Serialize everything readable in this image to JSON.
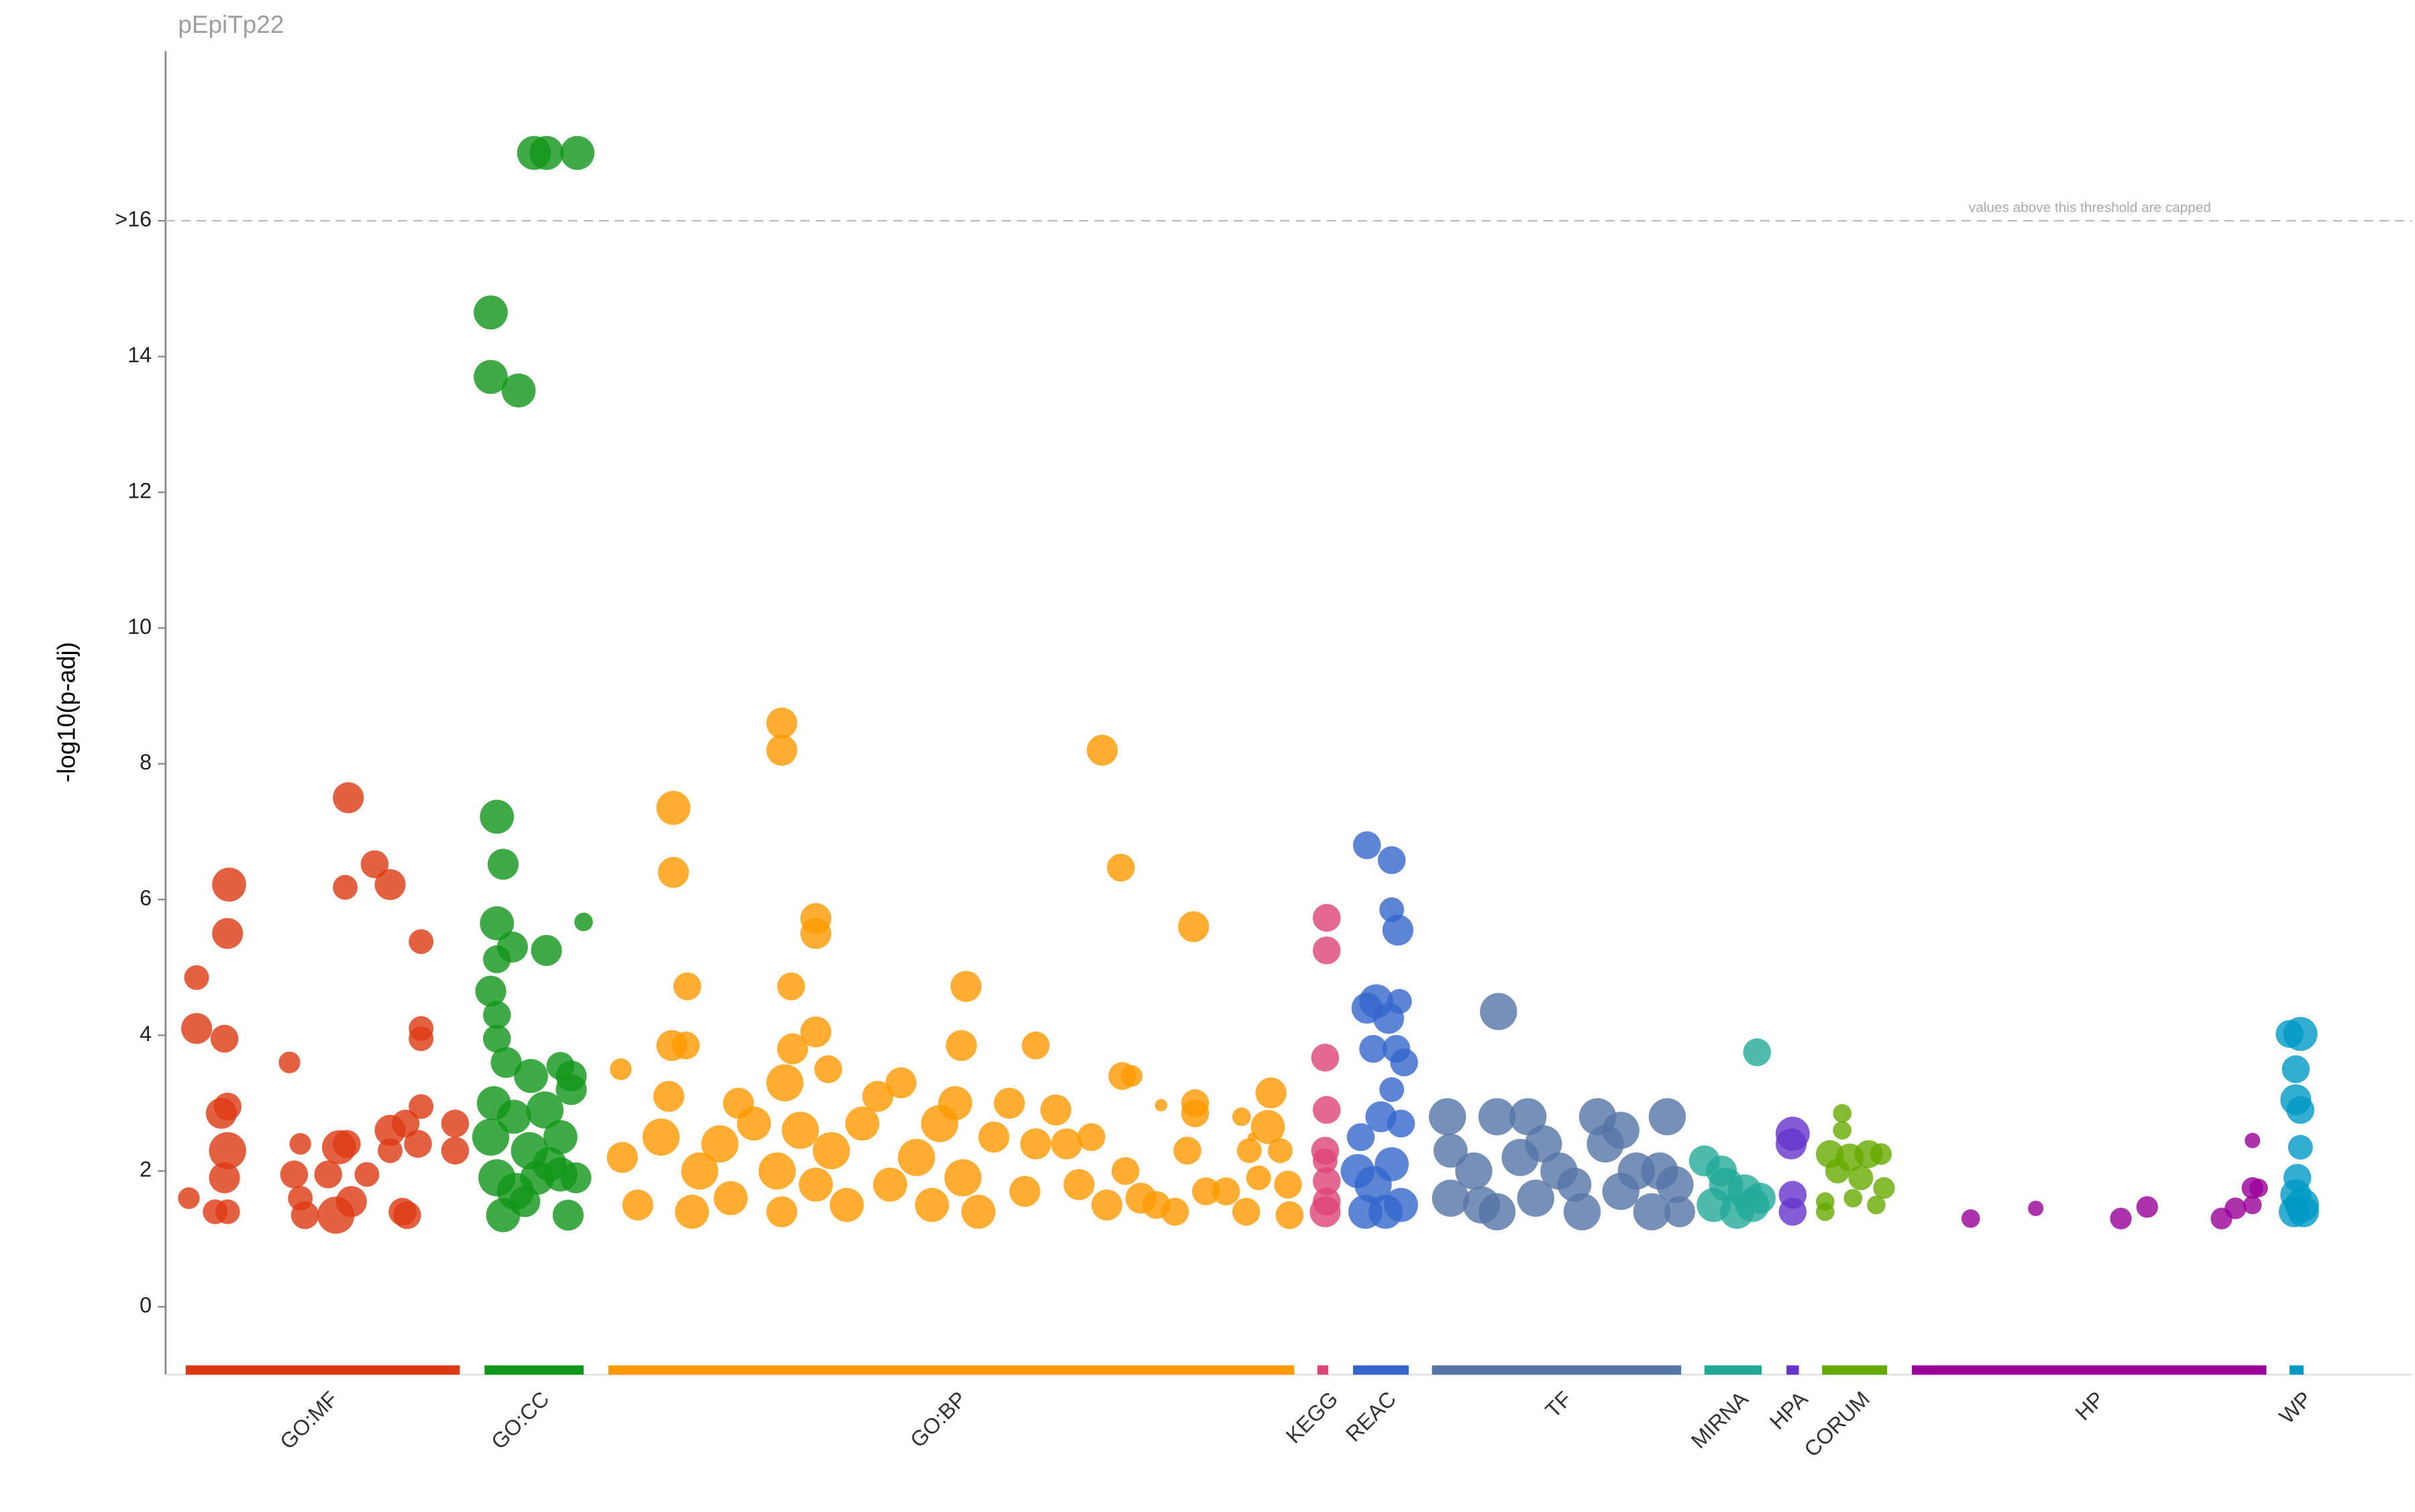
{
  "chart_data": {
    "type": "manhattan",
    "title": "pEpiTp22",
    "y_label": "-log10(p-adj)",
    "annotation": "values above this threshold are capped",
    "threshold": 16,
    "xlim": [
      0,
      1451
    ],
    "ylim": [
      -1,
      18.5
    ],
    "yticks": [
      0,
      2,
      4,
      6,
      8,
      10,
      12,
      14,
      {
        "value": 16,
        "label": ">16"
      }
    ],
    "series": [
      {
        "name": "GO:MF",
        "color": "#dc3912",
        "span": [
          13,
          190
        ],
        "x": [
          20,
          20,
          38,
          41,
          40,
          36,
          40,
          40,
          38,
          15,
          32,
          40,
          80,
          87,
          83,
          87,
          112,
          117,
          118,
          116,
          135,
          145,
          110,
          120,
          105,
          145,
          155,
          165,
          165,
          165,
          165,
          163,
          153,
          187,
          187,
          130,
          145,
          156,
          90
        ],
        "values": [
          4.85,
          4.1,
          3.95,
          6.22,
          5.5,
          2.85,
          2.95,
          2.3,
          1.9,
          1.6,
          1.4,
          1.4,
          3.6,
          2.4,
          1.95,
          1.6,
          2.35,
          2.4,
          7.5,
          6.18,
          6.52,
          6.22,
          1.35,
          1.55,
          1.95,
          2.6,
          2.7,
          5.38,
          4.1,
          3.95,
          2.95,
          2.4,
          1.4,
          2.7,
          2.3,
          1.95,
          2.3,
          1.35,
          1.35
        ],
        "sizes": [
          8,
          10,
          9,
          11,
          10,
          10,
          9,
          12,
          10,
          7,
          8,
          8,
          7,
          7,
          9,
          8,
          11,
          9,
          10,
          8,
          9,
          10,
          12,
          10,
          9,
          10,
          9,
          8,
          8,
          8,
          8,
          9,
          9,
          9,
          9,
          8,
          8,
          9,
          9
        ]
      },
      {
        "name": "GO:CC",
        "color": "#109618",
        "span": [
          206,
          270
        ],
        "x": [
          210,
          210,
          228,
          238,
          246,
          266,
          214,
          218,
          214,
          224,
          246,
          270,
          210,
          214,
          214,
          214,
          220,
          236,
          255,
          262,
          212,
          225,
          245,
          262,
          210,
          235,
          255,
          214,
          226,
          240,
          255,
          265,
          218,
          232,
          260,
          248
        ],
        "values": [
          14.65,
          13.7,
          13.5,
          17,
          17,
          17,
          7.22,
          6.52,
          5.65,
          5.3,
          5.25,
          5.67,
          4.65,
          5.12,
          4.3,
          3.95,
          3.6,
          3.4,
          3.55,
          3.4,
          3.0,
          2.8,
          2.9,
          3.2,
          2.5,
          2.3,
          2.5,
          1.9,
          1.7,
          1.9,
          1.95,
          1.9,
          1.35,
          1.55,
          1.35,
          2.1
        ],
        "sizes": [
          11,
          11,
          11,
          11,
          11,
          11,
          11,
          10,
          11,
          10,
          10,
          6,
          10,
          9,
          9,
          9,
          10,
          11,
          9,
          10,
          11,
          11,
          12,
          10,
          12,
          12,
          11,
          12,
          12,
          11,
          11,
          10,
          11,
          10,
          10,
          11
        ]
      },
      {
        "name": "GO:BP",
        "color": "#ff9900",
        "span": [
          286,
          729
        ],
        "x": [
          294,
          328,
          328,
          337,
          327,
          336,
          398,
          398,
          420,
          420,
          404,
          420,
          405,
          400,
          428,
          517,
          514,
          562,
          605,
          617,
          664,
          618,
          624,
          643,
          665,
          665,
          714,
          712,
          295,
          305,
          320,
          325,
          340,
          345,
          358,
          365,
          370,
          380,
          395,
          398,
          410,
          420,
          430,
          440,
          450,
          460,
          468,
          475,
          485,
          495,
          500,
          510,
          515,
          525,
          535,
          545,
          555,
          562,
          575,
          582,
          590,
          598,
          608,
          620,
          630,
          640,
          652,
          660,
          672,
          685,
          698,
          700,
          706,
          720,
          725,
          726,
          695,
          702
        ],
        "values": [
          3.5,
          7.35,
          6.4,
          4.72,
          3.85,
          3.85,
          8.6,
          8.2,
          5.72,
          5.5,
          4.72,
          4.05,
          3.8,
          3.3,
          3.5,
          4.72,
          3.85,
          3.85,
          8.2,
          6.47,
          5.6,
          3.4,
          3.4,
          2.97,
          3.0,
          2.85,
          3.15,
          2.65,
          2.2,
          1.5,
          2.5,
          3.1,
          1.4,
          2.0,
          2.4,
          1.6,
          3.0,
          2.7,
          2.0,
          1.4,
          2.6,
          1.8,
          2.3,
          1.5,
          2.7,
          3.1,
          1.8,
          3.3,
          2.2,
          1.5,
          2.7,
          3.0,
          1.9,
          1.4,
          2.5,
          3.0,
          1.7,
          2.4,
          2.9,
          2.4,
          1.8,
          2.5,
          1.5,
          2.0,
          1.6,
          1.5,
          1.4,
          2.3,
          1.7,
          1.7,
          1.4,
          2.3,
          1.9,
          2.3,
          1.8,
          1.35,
          2.8,
          2.5
        ],
        "sizes": [
          7,
          11,
          10,
          9,
          10,
          9,
          10,
          10,
          10,
          10,
          9,
          10,
          10,
          12,
          9,
          10,
          10,
          9,
          10,
          9,
          10,
          9,
          7,
          4,
          9,
          9,
          10,
          11,
          10,
          10,
          12,
          10,
          11,
          12,
          12,
          11,
          10,
          11,
          12,
          10,
          12,
          11,
          12,
          11,
          11,
          10,
          11,
          10,
          12,
          11,
          12,
          11,
          12,
          11,
          10,
          10,
          10,
          10,
          10,
          10,
          10,
          9,
          10,
          9,
          10,
          9,
          9,
          9,
          9,
          9,
          9,
          8,
          8,
          8,
          9,
          9,
          6,
          3
        ]
      },
      {
        "name": "KEGG",
        "color": "#dd4477",
        "span": [
          744,
          751
        ],
        "x": [
          750,
          750,
          749,
          750,
          749,
          749,
          750,
          750,
          749
        ],
        "values": [
          5.73,
          5.25,
          3.67,
          2.9,
          2.3,
          2.15,
          1.85,
          1.55,
          1.4
        ],
        "sizes": [
          9,
          9,
          9,
          9,
          9,
          8,
          9,
          9,
          10
        ]
      },
      {
        "name": "REAC",
        "color": "#3366cc",
        "span": [
          767,
          803
        ],
        "x": [
          776,
          792,
          792,
          796,
          776,
          782,
          797,
          790,
          780,
          795,
          800,
          792,
          772,
          785,
          798,
          770,
          780,
          792,
          798,
          775,
          788
        ],
        "values": [
          6.8,
          6.58,
          5.85,
          5.55,
          4.4,
          4.5,
          4.5,
          4.25,
          3.8,
          3.8,
          3.6,
          3.2,
          2.5,
          2.8,
          2.7,
          2.0,
          1.8,
          2.1,
          1.5,
          1.4,
          1.4
        ],
        "sizes": [
          9,
          9,
          8,
          10,
          10,
          11,
          8,
          10,
          9,
          9,
          9,
          8,
          9,
          10,
          9,
          11,
          12,
          11,
          11,
          11,
          11
        ]
      },
      {
        "name": "TF",
        "color": "#5574a6",
        "span": [
          818,
          979
        ],
        "x": [
          861,
          828,
          860,
          880,
          925,
          970,
          830,
          845,
          860,
          875,
          885,
          900,
          915,
          930,
          940,
          950,
          960,
          965,
          975,
          978,
          830,
          890,
          910,
          940,
          850
        ],
        "values": [
          4.35,
          2.8,
          2.8,
          2.8,
          2.8,
          2.8,
          1.6,
          2.0,
          1.4,
          2.2,
          1.6,
          2.0,
          1.4,
          2.4,
          1.7,
          2.0,
          1.4,
          2.0,
          1.8,
          1.4,
          2.3,
          2.4,
          1.8,
          2.6,
          1.5
        ],
        "sizes": [
          12,
          12,
          12,
          12,
          12,
          12,
          12,
          12,
          12,
          12,
          12,
          12,
          12,
          12,
          12,
          12,
          12,
          12,
          12,
          10,
          11,
          12,
          11,
          12,
          12
        ]
      },
      {
        "name": "MIRNA",
        "color": "#22aa99",
        "span": [
          994,
          1031
        ],
        "x": [
          994,
          1028,
          1000,
          1008,
          1015,
          1020,
          1025,
          1030,
          1005
        ],
        "values": [
          2.15,
          3.75,
          1.5,
          1.8,
          1.4,
          1.7,
          1.5,
          1.6,
          2.0
        ],
        "sizes": [
          10,
          9,
          11,
          11,
          11,
          11,
          11,
          10,
          10
        ]
      },
      {
        "name": "HPA",
        "color": "#6633cc",
        "span": [
          1047,
          1055
        ],
        "x": [
          1051,
          1050,
          1051,
          1051
        ],
        "values": [
          2.55,
          2.4,
          1.65,
          1.4
        ],
        "sizes": [
          11,
          10,
          9,
          9
        ]
      },
      {
        "name": "CORUM",
        "color": "#66aa00",
        "span": [
          1070,
          1112
        ],
        "x": [
          1083,
          1083,
          1075,
          1088,
          1100,
          1108,
          1080,
          1095,
          1110,
          1072,
          1090,
          1105,
          1072
        ],
        "values": [
          2.85,
          2.6,
          2.25,
          2.2,
          2.25,
          2.25,
          2.0,
          1.9,
          1.75,
          1.55,
          1.6,
          1.5,
          1.4
        ],
        "sizes": [
          6,
          6,
          9,
          9,
          9,
          7,
          8,
          8,
          7,
          6,
          6,
          6,
          6
        ]
      },
      {
        "name": "HP",
        "color": "#990099",
        "span": [
          1128,
          1357
        ],
        "x": [
          1166,
          1208,
          1263,
          1280,
          1328,
          1337,
          1348,
          1348,
          1352,
          1348
        ],
        "values": [
          1.3,
          1.45,
          1.3,
          1.47,
          1.3,
          1.45,
          2.45,
          1.75,
          1.75,
          1.5
        ],
        "sizes": [
          6,
          5,
          7,
          7,
          7,
          7,
          5,
          7,
          6,
          6
        ]
      },
      {
        "name": "WP",
        "color": "#0099c6",
        "span": [
          1372,
          1381
        ],
        "x": [
          1372,
          1379,
          1376,
          1376,
          1379,
          1379,
          1377,
          1376,
          1380,
          1375,
          1381
        ],
        "values": [
          4.02,
          4.02,
          3.5,
          3.05,
          2.9,
          2.35,
          1.9,
          1.65,
          1.5,
          1.4,
          1.4
        ],
        "sizes": [
          9,
          11,
          9,
          10,
          9,
          8,
          9,
          10,
          11,
          10,
          10
        ]
      }
    ]
  }
}
